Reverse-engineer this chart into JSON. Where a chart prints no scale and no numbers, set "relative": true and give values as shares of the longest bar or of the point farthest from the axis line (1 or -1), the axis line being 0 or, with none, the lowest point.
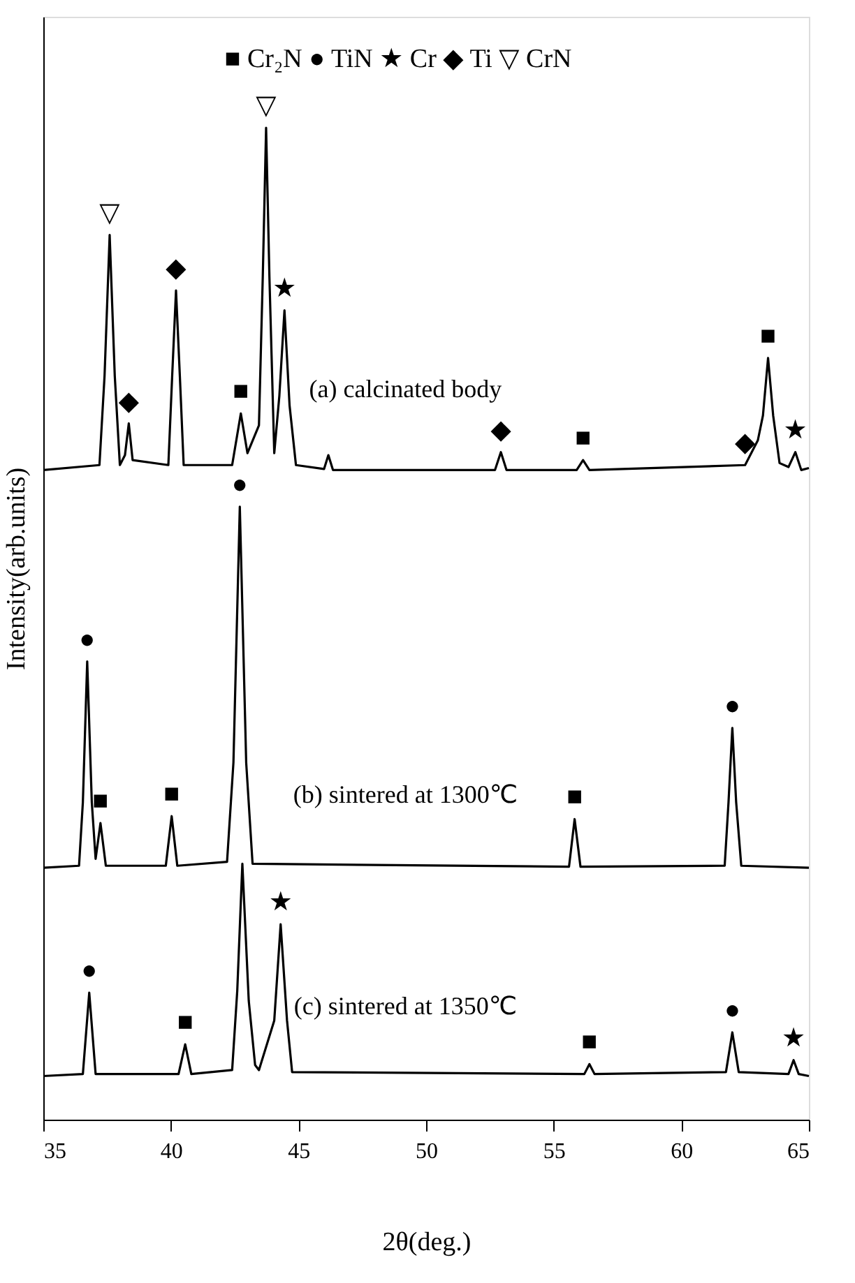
{
  "chart_data": {
    "type": "line",
    "relative": true,
    "xlabel": "2θ(deg.)",
    "ylabel": "Intensity(arb.units)",
    "xlim": [
      35,
      65
    ],
    "xticks": [
      35,
      40,
      45,
      50,
      55,
      60,
      65
    ],
    "grid": false,
    "marker": "none",
    "line_style": "solid",
    "series": [
      {
        "name": "(a) calcinated body",
        "color": "#000000",
        "x": [
          35.0,
          37.2,
          37.4,
          37.6,
          37.8,
          38.0,
          38.2,
          38.35,
          38.5,
          39.9,
          40.05,
          40.2,
          40.35,
          40.5,
          42.4,
          42.74,
          43.0,
          43.45,
          43.6,
          43.73,
          43.86,
          44.05,
          44.25,
          44.45,
          44.65,
          44.9,
          46.0,
          46.17,
          46.35,
          52.7,
          52.93,
          53.15,
          55.9,
          56.15,
          56.4,
          62.5,
          63.0,
          63.2,
          63.4,
          63.6,
          63.85,
          64.2,
          64.47,
          64.7,
          65.0
        ],
        "values": [
          0.655,
          0.66,
          0.75,
          0.892,
          0.75,
          0.66,
          0.67,
          0.702,
          0.665,
          0.66,
          0.75,
          0.836,
          0.75,
          0.66,
          0.66,
          0.712,
          0.672,
          0.7,
          0.85,
          1.0,
          0.85,
          0.672,
          0.73,
          0.816,
          0.72,
          0.66,
          0.656,
          0.67,
          0.655,
          0.655,
          0.673,
          0.655,
          0.655,
          0.665,
          0.655,
          0.66,
          0.685,
          0.71,
          0.768,
          0.71,
          0.662,
          0.658,
          0.673,
          0.655,
          0.657
        ]
      },
      {
        "name": "(b) sintered at 1300℃",
        "color": "#000000",
        "x": [
          35.0,
          36.4,
          36.55,
          36.72,
          36.9,
          37.05,
          37.24,
          37.45,
          39.8,
          40.03,
          40.25,
          42.2,
          42.45,
          42.7,
          42.95,
          43.2,
          55.6,
          55.82,
          56.05,
          61.7,
          61.85,
          62.0,
          62.15,
          62.35,
          65.0
        ],
        "values": [
          0.254,
          0.256,
          0.32,
          0.462,
          0.32,
          0.263,
          0.299,
          0.256,
          0.256,
          0.306,
          0.256,
          0.26,
          0.36,
          0.618,
          0.36,
          0.258,
          0.255,
          0.303,
          0.255,
          0.256,
          0.32,
          0.395,
          0.32,
          0.256,
          0.254
        ]
      },
      {
        "name": "(c) sintered at 1350℃",
        "color": "#000000",
        "x": [
          35.0,
          36.55,
          36.8,
          37.05,
          40.3,
          40.56,
          40.8,
          42.4,
          42.6,
          42.8,
          43.05,
          43.3,
          43.45,
          44.05,
          44.3,
          44.55,
          44.75,
          56.2,
          56.4,
          56.6,
          61.75,
          62.0,
          62.25,
          64.2,
          64.4,
          64.6,
          65.0
        ],
        "values": [
          0.044,
          0.046,
          0.128,
          0.046,
          0.046,
          0.076,
          0.046,
          0.05,
          0.13,
          0.258,
          0.12,
          0.055,
          0.05,
          0.1,
          0.197,
          0.1,
          0.048,
          0.046,
          0.056,
          0.046,
          0.048,
          0.088,
          0.048,
          0.046,
          0.06,
          0.046,
          0.044
        ]
      }
    ],
    "annotations": [
      "■ Cr₂N   ● TiN   ★ Cr   ◆ Ti   ▽ CrN",
      {
        "text": "▽",
        "x": 37.6,
        "y": 0.892
      },
      {
        "text": "◆",
        "x": 38.35,
        "y": 0.702
      },
      {
        "text": "◆",
        "x": 40.2,
        "y": 0.836
      },
      {
        "text": "■",
        "x": 42.74,
        "y": 0.712
      },
      {
        "text": "▽",
        "x": 43.73,
        "y": 1.0
      },
      {
        "text": "★",
        "x": 44.45,
        "y": 0.816
      },
      {
        "text": "◆",
        "x": 52.93,
        "y": 0.673
      },
      {
        "text": "■",
        "x": 56.15,
        "y": 0.665
      },
      {
        "text": "◆",
        "x": 62.5,
        "y": 0.66
      },
      {
        "text": "■",
        "x": 63.4,
        "y": 0.768
      },
      {
        "text": "★",
        "x": 64.47,
        "y": 0.673
      },
      {
        "text": "●",
        "x": 36.72,
        "y": 0.462
      },
      {
        "text": "■",
        "x": 37.24,
        "y": 0.299
      },
      {
        "text": "■",
        "x": 40.03,
        "y": 0.306
      },
      {
        "text": "●",
        "x": 42.7,
        "y": 0.618
      },
      {
        "text": "■",
        "x": 55.82,
        "y": 0.303
      },
      {
        "text": "●",
        "x": 62.0,
        "y": 0.395
      },
      {
        "text": "●",
        "x": 36.8,
        "y": 0.128
      },
      {
        "text": "■",
        "x": 40.56,
        "y": 0.076
      },
      {
        "text": "★",
        "x": 44.3,
        "y": 0.197
      },
      {
        "text": "■",
        "x": 56.4,
        "y": 0.056
      },
      {
        "text": "●",
        "x": 62.0,
        "y": 0.088
      },
      {
        "text": "★",
        "x": 64.4,
        "y": 0.06
      }
    ]
  }
}
